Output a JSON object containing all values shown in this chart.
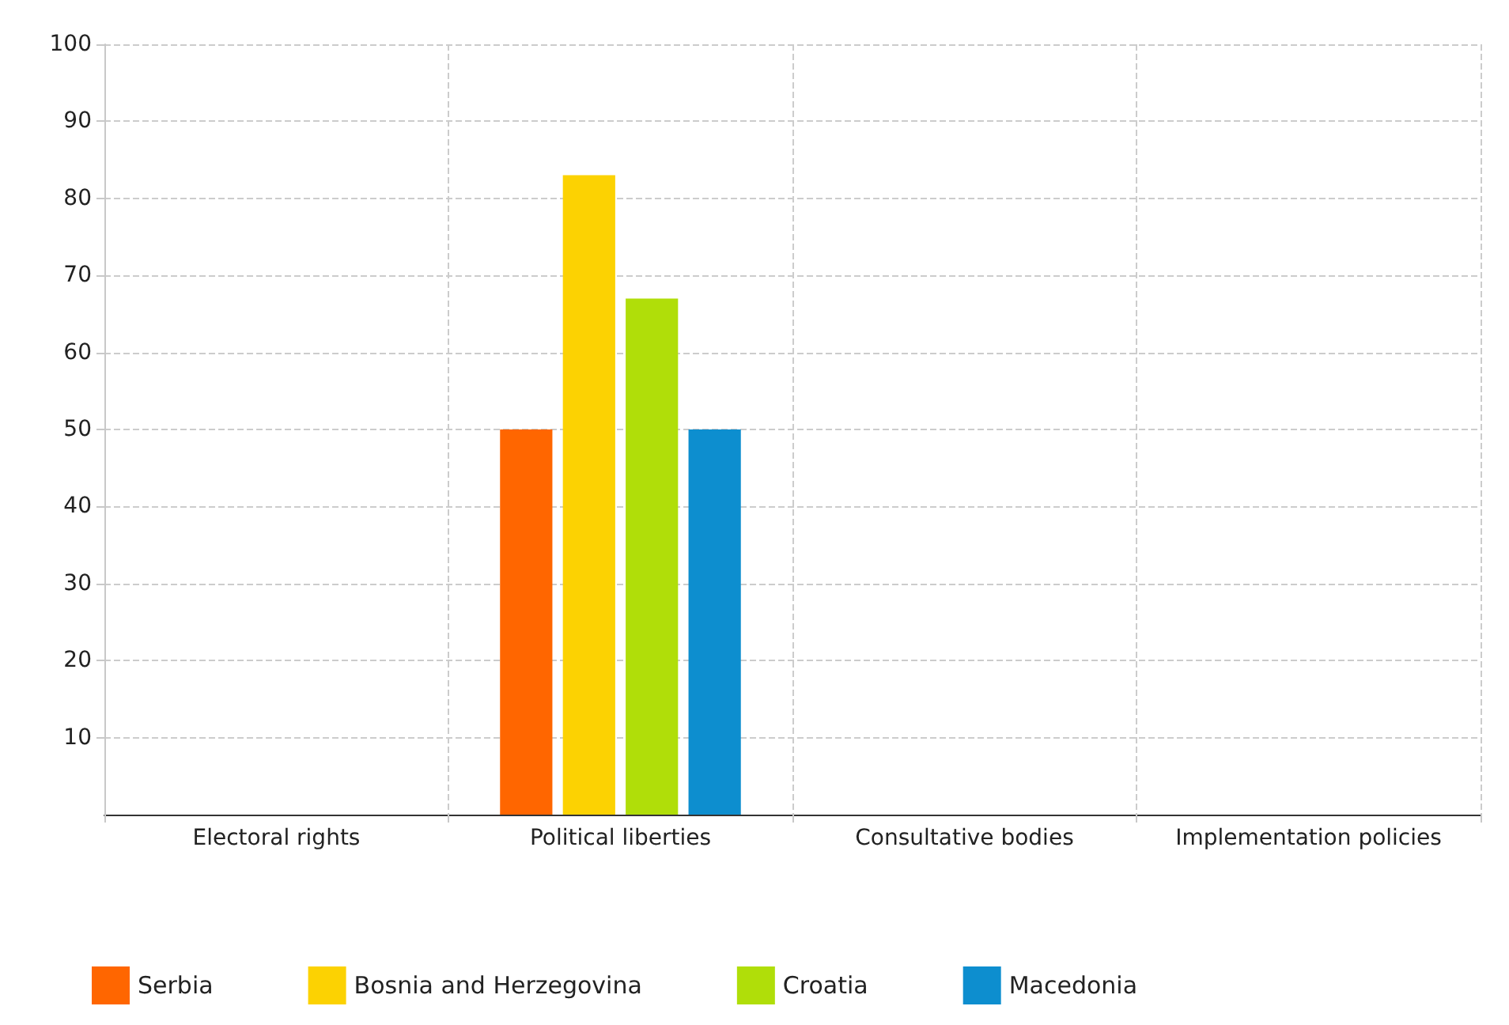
{
  "chart_data": {
    "type": "bar",
    "categories": [
      "Electoral rights",
      "Political liberties",
      "Consultative bodies",
      "Implementation policies"
    ],
    "series": [
      {
        "name": "Serbia",
        "color": "#ff6600",
        "values": [
          0,
          50,
          0,
          0
        ]
      },
      {
        "name": "Bosnia and Herzegovina",
        "color": "#fcd202",
        "values": [
          0,
          83,
          0,
          0
        ]
      },
      {
        "name": "Croatia",
        "color": "#b0de09",
        "values": [
          0,
          67,
          0,
          0
        ]
      },
      {
        "name": "Macedonia",
        "color": "#0d8ecf",
        "values": [
          0,
          50,
          0,
          0
        ]
      }
    ],
    "ylim": [
      0,
      100
    ],
    "yticks": [
      10,
      20,
      30,
      40,
      50,
      60,
      70,
      80,
      90,
      100
    ],
    "grid": true,
    "legend": "bottom"
  }
}
